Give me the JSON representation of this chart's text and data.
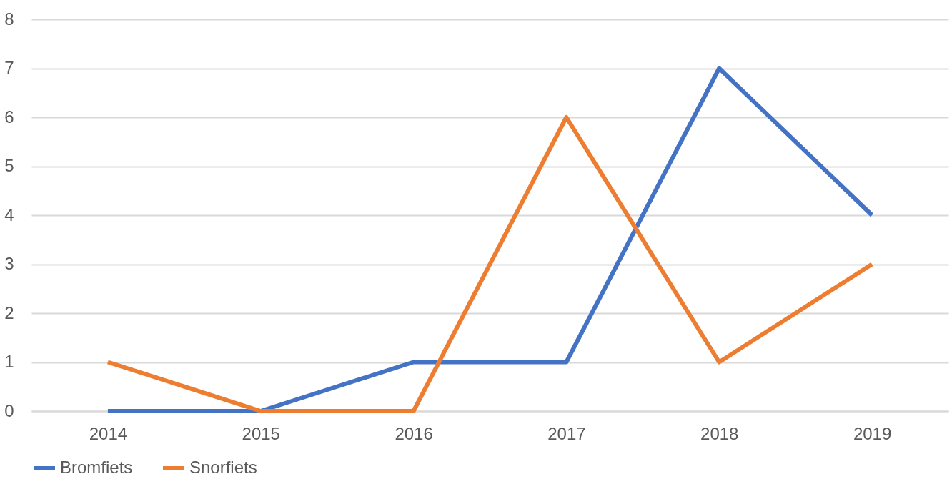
{
  "chart_data": {
    "type": "line",
    "categories": [
      "2014",
      "2015",
      "2016",
      "2017",
      "2018",
      "2019"
    ],
    "series": [
      {
        "name": "Bromfiets",
        "color": "#4472c4",
        "values": [
          0,
          0,
          1,
          1,
          7,
          4
        ]
      },
      {
        "name": "Snorfiets",
        "color": "#ed7d31",
        "values": [
          1,
          0,
          0,
          6,
          1,
          3
        ]
      }
    ],
    "ylim": [
      0,
      8
    ],
    "yticks": [
      0,
      1,
      2,
      3,
      4,
      5,
      6,
      7,
      8
    ],
    "grid": "y",
    "legend": "bottom",
    "marker": "none",
    "line_style": "solid"
  }
}
